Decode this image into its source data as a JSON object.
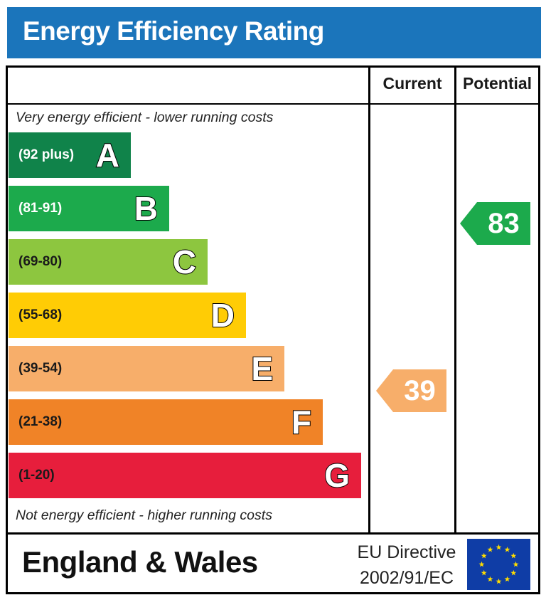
{
  "title": "Energy Efficiency Rating",
  "columns": {
    "current": "Current",
    "potential": "Potential"
  },
  "notes": {
    "top": "Very energy efficient - lower running costs",
    "bottom": "Not energy efficient - higher running costs"
  },
  "bands": [
    {
      "letter": "A",
      "range": "(92 plus)",
      "color": "#10834a",
      "text_color": "#ffffff"
    },
    {
      "letter": "B",
      "range": "(81-91)",
      "color": "#1caa4c",
      "text_color": "#ffffff"
    },
    {
      "letter": "C",
      "range": "(69-80)",
      "color": "#8dc63f",
      "text_color": "#1a1a1a"
    },
    {
      "letter": "D",
      "range": "(55-68)",
      "color": "#ffcc05",
      "text_color": "#1a1a1a"
    },
    {
      "letter": "E",
      "range": "(39-54)",
      "color": "#f7ae6a",
      "text_color": "#1a1a1a"
    },
    {
      "letter": "F",
      "range": "(21-38)",
      "color": "#f08327",
      "text_color": "#1a1a1a"
    },
    {
      "letter": "G",
      "range": "(1-20)",
      "color": "#e71e3c",
      "text_color": "#1a1a1a"
    }
  ],
  "ratings": {
    "current": {
      "value": "39",
      "band": "E",
      "color": "#f7ae6a"
    },
    "potential": {
      "value": "83",
      "band": "B",
      "color": "#1caa4c"
    }
  },
  "footer": {
    "country": "England & Wales",
    "directive_line1": "EU Directive",
    "directive_line2": "2002/91/EC"
  },
  "flag_colors": {
    "background": "#0f3da6",
    "stars": "#ffdd00"
  }
}
